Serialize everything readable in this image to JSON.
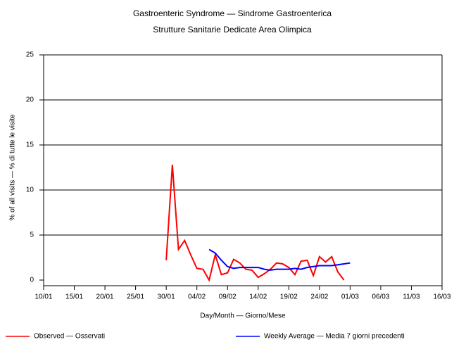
{
  "chart_data": {
    "type": "line",
    "title": "Gastroenteric Syndrome — Sindrome Gastroenterica",
    "subtitle": "Strutture Sanitarie Dedicate Area Olimpica",
    "x_label": "Day/Month — Giorno/Mese",
    "y_label": "% of all visits — % di tutte le visite",
    "xlim": [
      "10/01",
      "16/03"
    ],
    "xticks": [
      "10/01",
      "15/01",
      "20/01",
      "25/01",
      "30/01",
      "04/02",
      "09/02",
      "14/02",
      "19/02",
      "24/02",
      "01/03",
      "06/03",
      "11/03",
      "16/03"
    ],
    "ylim": [
      0,
      25
    ],
    "yticks": [
      0,
      5,
      10,
      15,
      20,
      25
    ],
    "grid": true,
    "legend": "bottom",
    "series": [
      {
        "name": "Observed — Osservati",
        "color": "#ff0000",
        "x": [
          "30/01",
          "31/01",
          "01/02",
          "02/02",
          "03/02",
          "04/02",
          "05/02",
          "06/02",
          "07/02",
          "08/02",
          "09/02",
          "10/02",
          "11/02",
          "12/02",
          "13/02",
          "14/02",
          "15/02",
          "16/02",
          "17/02",
          "18/02",
          "19/02",
          "20/02",
          "21/02",
          "22/02",
          "23/02",
          "24/02",
          "25/02",
          "26/02",
          "27/02",
          "28/02"
        ],
        "values": [
          2.2,
          12.8,
          3.4,
          4.4,
          2.8,
          1.3,
          1.2,
          0,
          2.8,
          0.6,
          0.8,
          2.3,
          1.9,
          1.2,
          1.1,
          0.3,
          0.7,
          1.2,
          1.9,
          1.8,
          1.4,
          0.6,
          2.1,
          2.2,
          0.5,
          2.6,
          2.0,
          2.6,
          0.9,
          0
        ]
      },
      {
        "name": "Weekly Average — Media 7 giorni precedenti",
        "color": "#0000ff",
        "x": [
          "06/02",
          "07/02",
          "08/02",
          "09/02",
          "10/02",
          "11/02",
          "12/02",
          "13/02",
          "14/02",
          "15/02",
          "16/02",
          "17/02",
          "18/02",
          "19/02",
          "20/02",
          "21/02",
          "22/02",
          "23/02",
          "24/02",
          "25/02",
          "26/02",
          "27/02",
          "28/02",
          "01/03"
        ],
        "values": [
          3.4,
          3.0,
          2.2,
          1.5,
          1.3,
          1.4,
          1.4,
          1.4,
          1.4,
          1.2,
          1.1,
          1.2,
          1.2,
          1.2,
          1.3,
          1.2,
          1.4,
          1.5,
          1.6,
          1.6,
          1.6,
          1.7,
          1.8,
          1.9
        ]
      }
    ]
  }
}
